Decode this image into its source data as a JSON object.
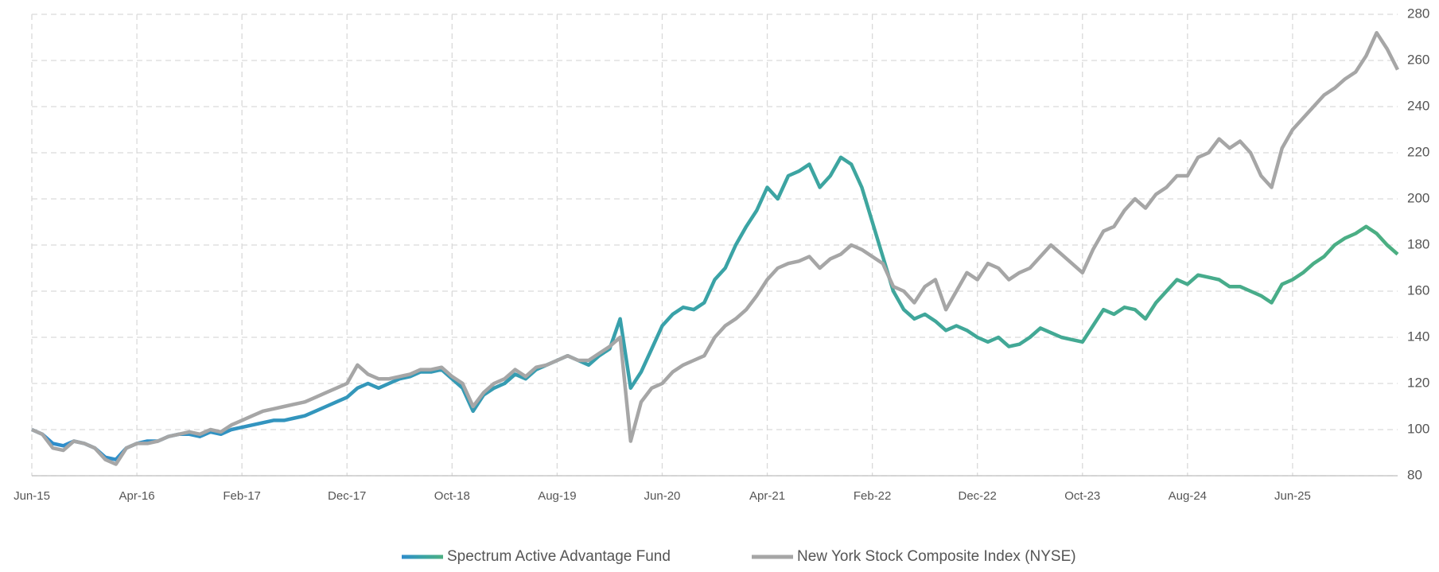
{
  "chart_data": {
    "type": "line",
    "categories": [
      "Jun-15",
      null,
      null,
      null,
      null,
      null,
      null,
      null,
      null,
      null,
      "Apr-16",
      null,
      null,
      null,
      null,
      null,
      null,
      null,
      null,
      null,
      "Feb-17",
      null,
      null,
      null,
      null,
      null,
      null,
      null,
      null,
      null,
      "Dec-17",
      null,
      null,
      null,
      null,
      null,
      null,
      null,
      null,
      null,
      "Oct-18",
      null,
      null,
      null,
      null,
      null,
      null,
      null,
      null,
      null,
      "Aug-19",
      null,
      null,
      null,
      null,
      null,
      null,
      null,
      null,
      null,
      "Jun-20",
      null,
      null,
      null,
      null,
      null,
      null,
      null,
      null,
      null,
      "Apr-21",
      null,
      null,
      null,
      null,
      null,
      null,
      null,
      null,
      null,
      "Feb-22",
      null,
      null,
      null,
      null,
      null,
      null,
      null,
      null,
      null,
      "Dec-22",
      null,
      null,
      null,
      null,
      null,
      null,
      null,
      null,
      null,
      "Oct-23",
      null,
      null,
      null,
      null,
      null,
      null,
      null,
      null,
      null,
      "Aug-24",
      null,
      null,
      null,
      null,
      null,
      null,
      null,
      null,
      null,
      "Jun-25",
      null,
      null,
      null,
      null,
      null,
      null,
      null,
      null,
      null,
      null
    ],
    "series": [
      {
        "name": "Spectrum Active Advantage Fund",
        "color": "#3a9fb3",
        "gradient": [
          "#2e8ccc",
          "#3aa3a6",
          "#4caf82"
        ],
        "values": [
          100,
          98,
          94,
          93,
          95,
          94,
          92,
          88,
          87,
          92,
          94,
          95,
          95,
          97,
          98,
          98,
          97,
          99,
          98,
          100,
          101,
          102,
          103,
          104,
          104,
          105,
          106,
          108,
          110,
          112,
          114,
          118,
          120,
          118,
          120,
          122,
          123,
          125,
          125,
          126,
          122,
          118,
          108,
          115,
          118,
          120,
          124,
          122,
          126,
          128,
          130,
          132,
          130,
          128,
          132,
          135,
          148,
          118,
          125,
          135,
          145,
          150,
          153,
          152,
          155,
          165,
          170,
          180,
          188,
          195,
          205,
          200,
          210,
          212,
          215,
          205,
          210,
          218,
          215,
          205,
          190,
          175,
          160,
          152,
          148,
          150,
          147,
          143,
          145,
          143,
          140,
          138,
          140,
          136,
          137,
          140,
          144,
          142,
          140,
          139,
          138,
          145,
          152,
          150,
          153,
          152,
          148,
          155,
          160,
          165,
          163,
          167,
          166,
          165,
          162,
          162,
          160,
          158,
          155,
          163,
          165,
          168,
          172,
          175,
          180,
          183,
          185,
          188,
          185,
          180,
          176
        ]
      },
      {
        "name": "New York Stock Composite Index (NYSE)",
        "color": "#a6a6a6",
        "values": [
          100,
          98,
          92,
          91,
          95,
          94,
          92,
          87,
          85,
          92,
          94,
          94,
          95,
          97,
          98,
          99,
          98,
          100,
          99,
          102,
          104,
          106,
          108,
          109,
          110,
          111,
          112,
          114,
          116,
          118,
          120,
          128,
          124,
          122,
          122,
          123,
          124,
          126,
          126,
          127,
          123,
          120,
          110,
          116,
          120,
          122,
          126,
          123,
          127,
          128,
          130,
          132,
          130,
          130,
          133,
          136,
          140,
          95,
          112,
          118,
          120,
          125,
          128,
          130,
          132,
          140,
          145,
          148,
          152,
          158,
          165,
          170,
          172,
          173,
          175,
          170,
          174,
          176,
          180,
          178,
          175,
          172,
          162,
          160,
          155,
          162,
          165,
          152,
          160,
          168,
          165,
          172,
          170,
          165,
          168,
          170,
          175,
          180,
          176,
          172,
          168,
          178,
          186,
          188,
          195,
          200,
          196,
          202,
          205,
          210,
          210,
          218,
          220,
          226,
          222,
          225,
          220,
          210,
          205,
          222,
          230,
          235,
          240,
          245,
          248,
          252,
          255,
          262,
          272,
          265,
          256
        ]
      }
    ],
    "ylim": [
      80,
      280
    ],
    "yticks": [
      80,
      100,
      120,
      140,
      160,
      180,
      200,
      220,
      240,
      260,
      280
    ],
    "grid": true,
    "legend": "bottom"
  }
}
